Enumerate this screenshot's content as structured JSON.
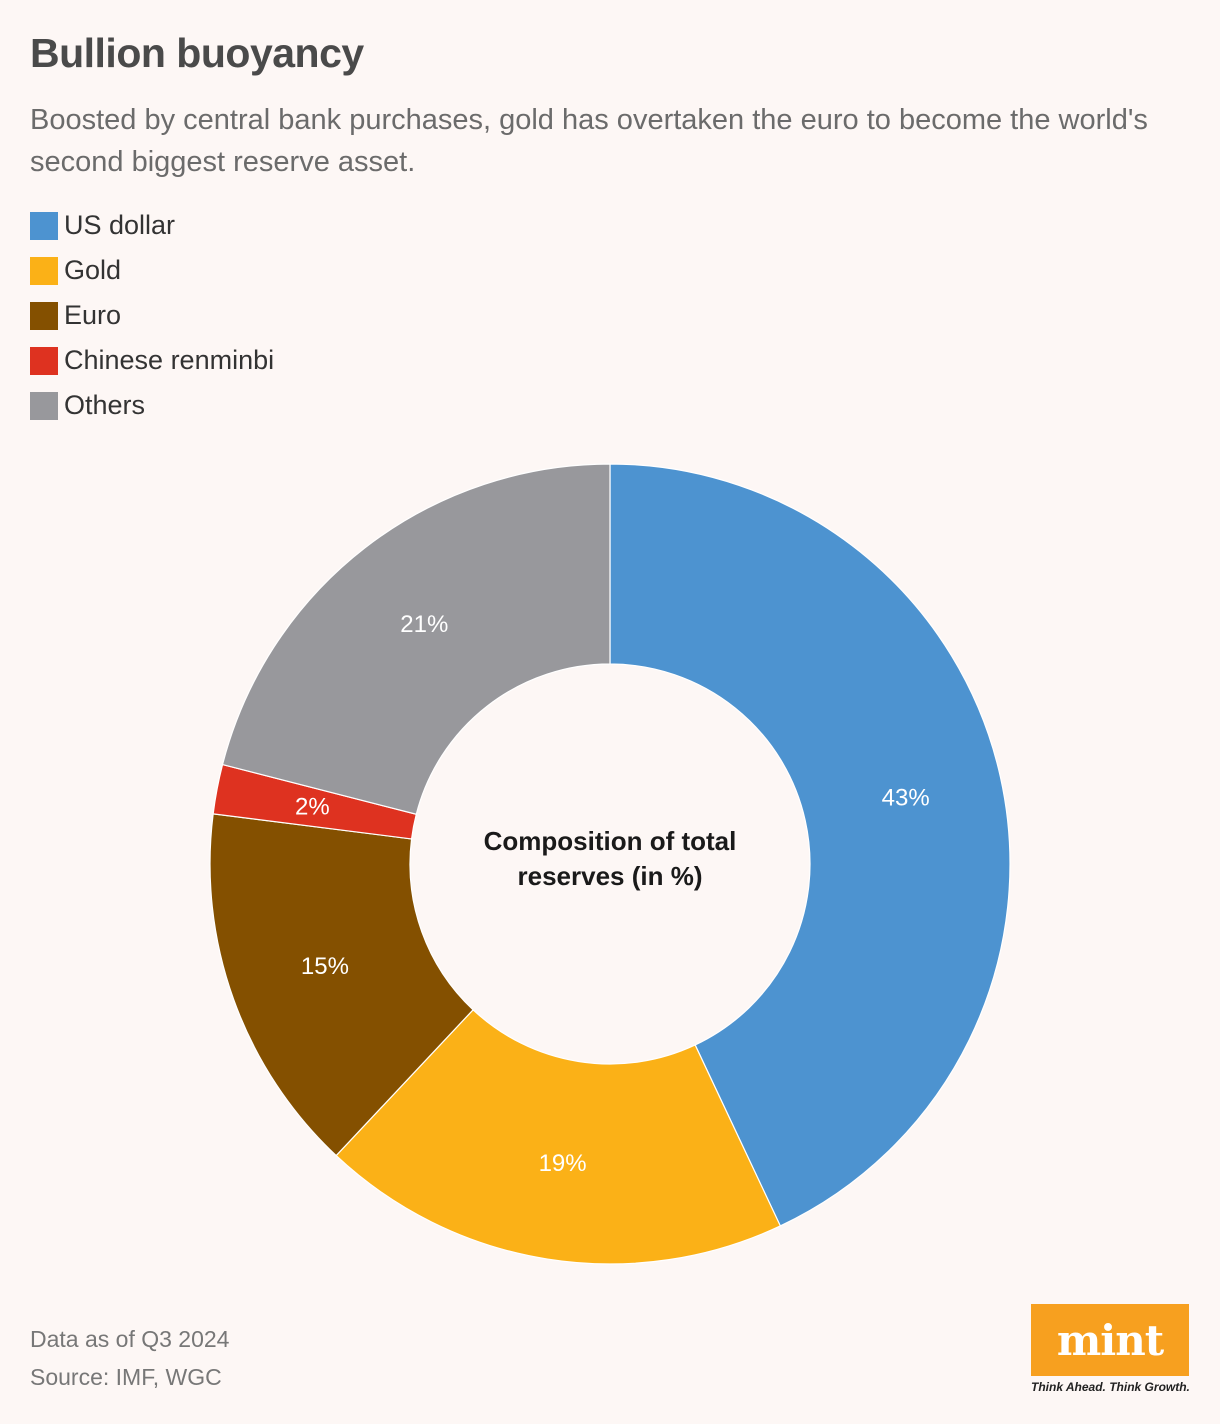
{
  "title": "Bullion buoyancy",
  "subtitle": "Boosted by central bank purchases, gold has overtaken the euro to become the world's second biggest reserve asset.",
  "chart_data": {
    "type": "pie",
    "variant": "donut",
    "center_label": "Composition of total reserves (in %)",
    "legend_position": "top-left",
    "slices": [
      {
        "label": "US dollar",
        "value": 43,
        "display": "43%",
        "color": "#4D93D0"
      },
      {
        "label": "Gold",
        "value": 19,
        "display": "19%",
        "color": "#FBB117"
      },
      {
        "label": "Euro",
        "value": 15,
        "display": "15%",
        "color": "#845000"
      },
      {
        "label": "Chinese renminbi",
        "value": 2,
        "display": "2%",
        "color": "#DE3220"
      },
      {
        "label": "Others",
        "value": 21,
        "display": "21%",
        "color": "#98989C"
      }
    ]
  },
  "footer": {
    "note": "Data as of Q3 2024",
    "source": "Source: IMF, WGC"
  },
  "logo": {
    "text": "mint",
    "tagline": "Think Ahead. Think Growth."
  },
  "colors": {
    "background": "#FDF7F5",
    "logo_background": "#F7A01F"
  }
}
